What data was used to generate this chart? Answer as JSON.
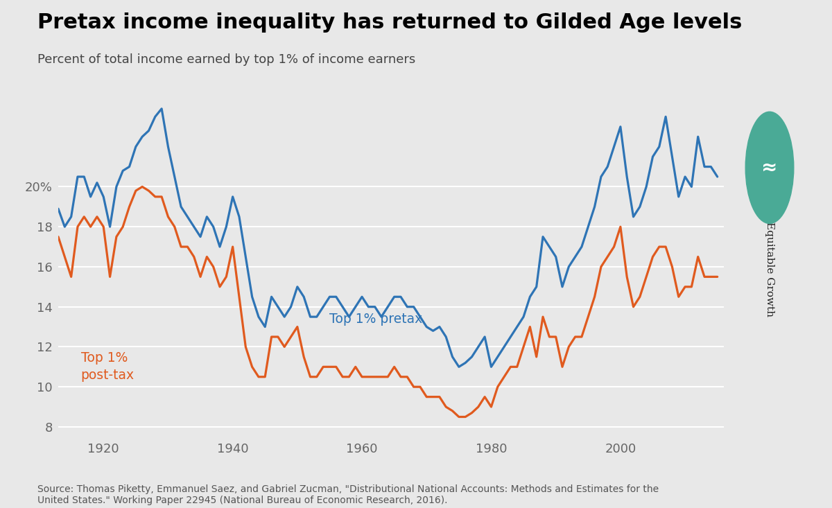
{
  "title": "Pretax income inequality has returned to Gilded Age levels",
  "subtitle": "Percent of total income earned by top 1% of income earners",
  "source": "Source: Thomas Piketty, Emmanuel Saez, and Gabriel Zucman, \"Distributional National Accounts: Methods and Estimates for the\nUnited States.\" Working Paper 22945 (National Bureau of Economic Research, 2016).",
  "bg_color": "#e8e8e8",
  "pretax_color": "#2e74b5",
  "posttax_color": "#e05a1e",
  "pretax_label": "Top 1% pretax",
  "posttax_label": "Top 1%\npost-tax",
  "ylim": [
    7.5,
    24
  ],
  "yticks": [
    8,
    10,
    12,
    14,
    16,
    18,
    20
  ],
  "ytick_labels": [
    "8",
    "10",
    "12",
    "14",
    "16",
    "18",
    "20%"
  ],
  "logo_color": "#4aaa96",
  "pretax": {
    "years": [
      1913,
      1914,
      1915,
      1916,
      1917,
      1918,
      1919,
      1920,
      1921,
      1922,
      1923,
      1924,
      1925,
      1926,
      1927,
      1928,
      1929,
      1930,
      1931,
      1932,
      1933,
      1934,
      1935,
      1936,
      1937,
      1938,
      1939,
      1940,
      1941,
      1942,
      1943,
      1944,
      1945,
      1946,
      1947,
      1948,
      1949,
      1950,
      1951,
      1952,
      1953,
      1954,
      1955,
      1956,
      1957,
      1958,
      1959,
      1960,
      1961,
      1962,
      1963,
      1964,
      1965,
      1966,
      1967,
      1968,
      1969,
      1970,
      1971,
      1972,
      1973,
      1974,
      1975,
      1976,
      1977,
      1978,
      1979,
      1980,
      1981,
      1982,
      1983,
      1984,
      1985,
      1986,
      1987,
      1988,
      1989,
      1990,
      1991,
      1992,
      1993,
      1994,
      1995,
      1996,
      1997,
      1998,
      1999,
      2000,
      2001,
      2002,
      2003,
      2004,
      2005,
      2006,
      2007,
      2008,
      2009,
      2010,
      2011,
      2012,
      2013,
      2014,
      2015
    ],
    "values": [
      18.9,
      18.0,
      18.5,
      20.5,
      20.5,
      19.5,
      20.2,
      19.5,
      18.0,
      20.0,
      20.8,
      21.0,
      22.0,
      22.5,
      22.8,
      23.5,
      23.9,
      22.0,
      20.5,
      19.0,
      18.5,
      18.0,
      17.5,
      18.5,
      18.0,
      17.0,
      18.0,
      19.5,
      18.5,
      16.5,
      14.5,
      13.5,
      13.0,
      14.5,
      14.0,
      13.5,
      14.0,
      15.0,
      14.5,
      13.5,
      13.5,
      14.0,
      14.5,
      14.5,
      14.0,
      13.5,
      14.0,
      14.5,
      14.0,
      14.0,
      13.5,
      14.0,
      14.5,
      14.5,
      14.0,
      14.0,
      13.5,
      13.0,
      12.8,
      13.0,
      12.5,
      11.5,
      11.0,
      11.2,
      11.5,
      12.0,
      12.5,
      11.0,
      11.5,
      12.0,
      12.5,
      13.0,
      13.5,
      14.5,
      15.0,
      17.5,
      17.0,
      16.5,
      15.0,
      16.0,
      16.5,
      17.0,
      18.0,
      19.0,
      20.5,
      21.0,
      22.0,
      23.0,
      20.5,
      18.5,
      19.0,
      20.0,
      21.5,
      22.0,
      23.5,
      21.5,
      19.5,
      20.5,
      20.0,
      22.5,
      21.0,
      21.0,
      20.5
    ]
  },
  "posttax": {
    "years": [
      1913,
      1914,
      1915,
      1916,
      1917,
      1918,
      1919,
      1920,
      1921,
      1922,
      1923,
      1924,
      1925,
      1926,
      1927,
      1928,
      1929,
      1930,
      1931,
      1932,
      1933,
      1934,
      1935,
      1936,
      1937,
      1938,
      1939,
      1940,
      1941,
      1942,
      1943,
      1944,
      1945,
      1946,
      1947,
      1948,
      1949,
      1950,
      1951,
      1952,
      1953,
      1954,
      1955,
      1956,
      1957,
      1958,
      1959,
      1960,
      1961,
      1962,
      1963,
      1964,
      1965,
      1966,
      1967,
      1968,
      1969,
      1970,
      1971,
      1972,
      1973,
      1974,
      1975,
      1976,
      1977,
      1978,
      1979,
      1980,
      1981,
      1982,
      1983,
      1984,
      1985,
      1986,
      1987,
      1988,
      1989,
      1990,
      1991,
      1992,
      1993,
      1994,
      1995,
      1996,
      1997,
      1998,
      1999,
      2000,
      2001,
      2002,
      2003,
      2004,
      2005,
      2006,
      2007,
      2008,
      2009,
      2010,
      2011,
      2012,
      2013,
      2014,
      2015
    ],
    "values": [
      17.5,
      16.5,
      15.5,
      18.0,
      18.5,
      18.0,
      18.5,
      18.0,
      15.5,
      17.5,
      18.0,
      19.0,
      19.8,
      20.0,
      19.8,
      19.5,
      19.5,
      18.5,
      18.0,
      17.0,
      17.0,
      16.5,
      15.5,
      16.5,
      16.0,
      15.0,
      15.5,
      17.0,
      14.5,
      12.0,
      11.0,
      10.5,
      10.5,
      12.5,
      12.5,
      12.0,
      12.5,
      13.0,
      11.5,
      10.5,
      10.5,
      11.0,
      11.0,
      11.0,
      10.5,
      10.5,
      11.0,
      10.5,
      10.5,
      10.5,
      10.5,
      10.5,
      11.0,
      10.5,
      10.5,
      10.0,
      10.0,
      9.5,
      9.5,
      9.5,
      9.0,
      8.8,
      8.5,
      8.5,
      8.7,
      9.0,
      9.5,
      9.0,
      10.0,
      10.5,
      11.0,
      11.0,
      12.0,
      13.0,
      11.5,
      13.5,
      12.5,
      12.5,
      11.0,
      12.0,
      12.5,
      12.5,
      13.5,
      14.5,
      16.0,
      16.5,
      17.0,
      18.0,
      15.5,
      14.0,
      14.5,
      15.5,
      16.5,
      17.0,
      17.0,
      16.0,
      14.5,
      15.0,
      15.0,
      16.5,
      15.5,
      15.5,
      15.5
    ]
  }
}
